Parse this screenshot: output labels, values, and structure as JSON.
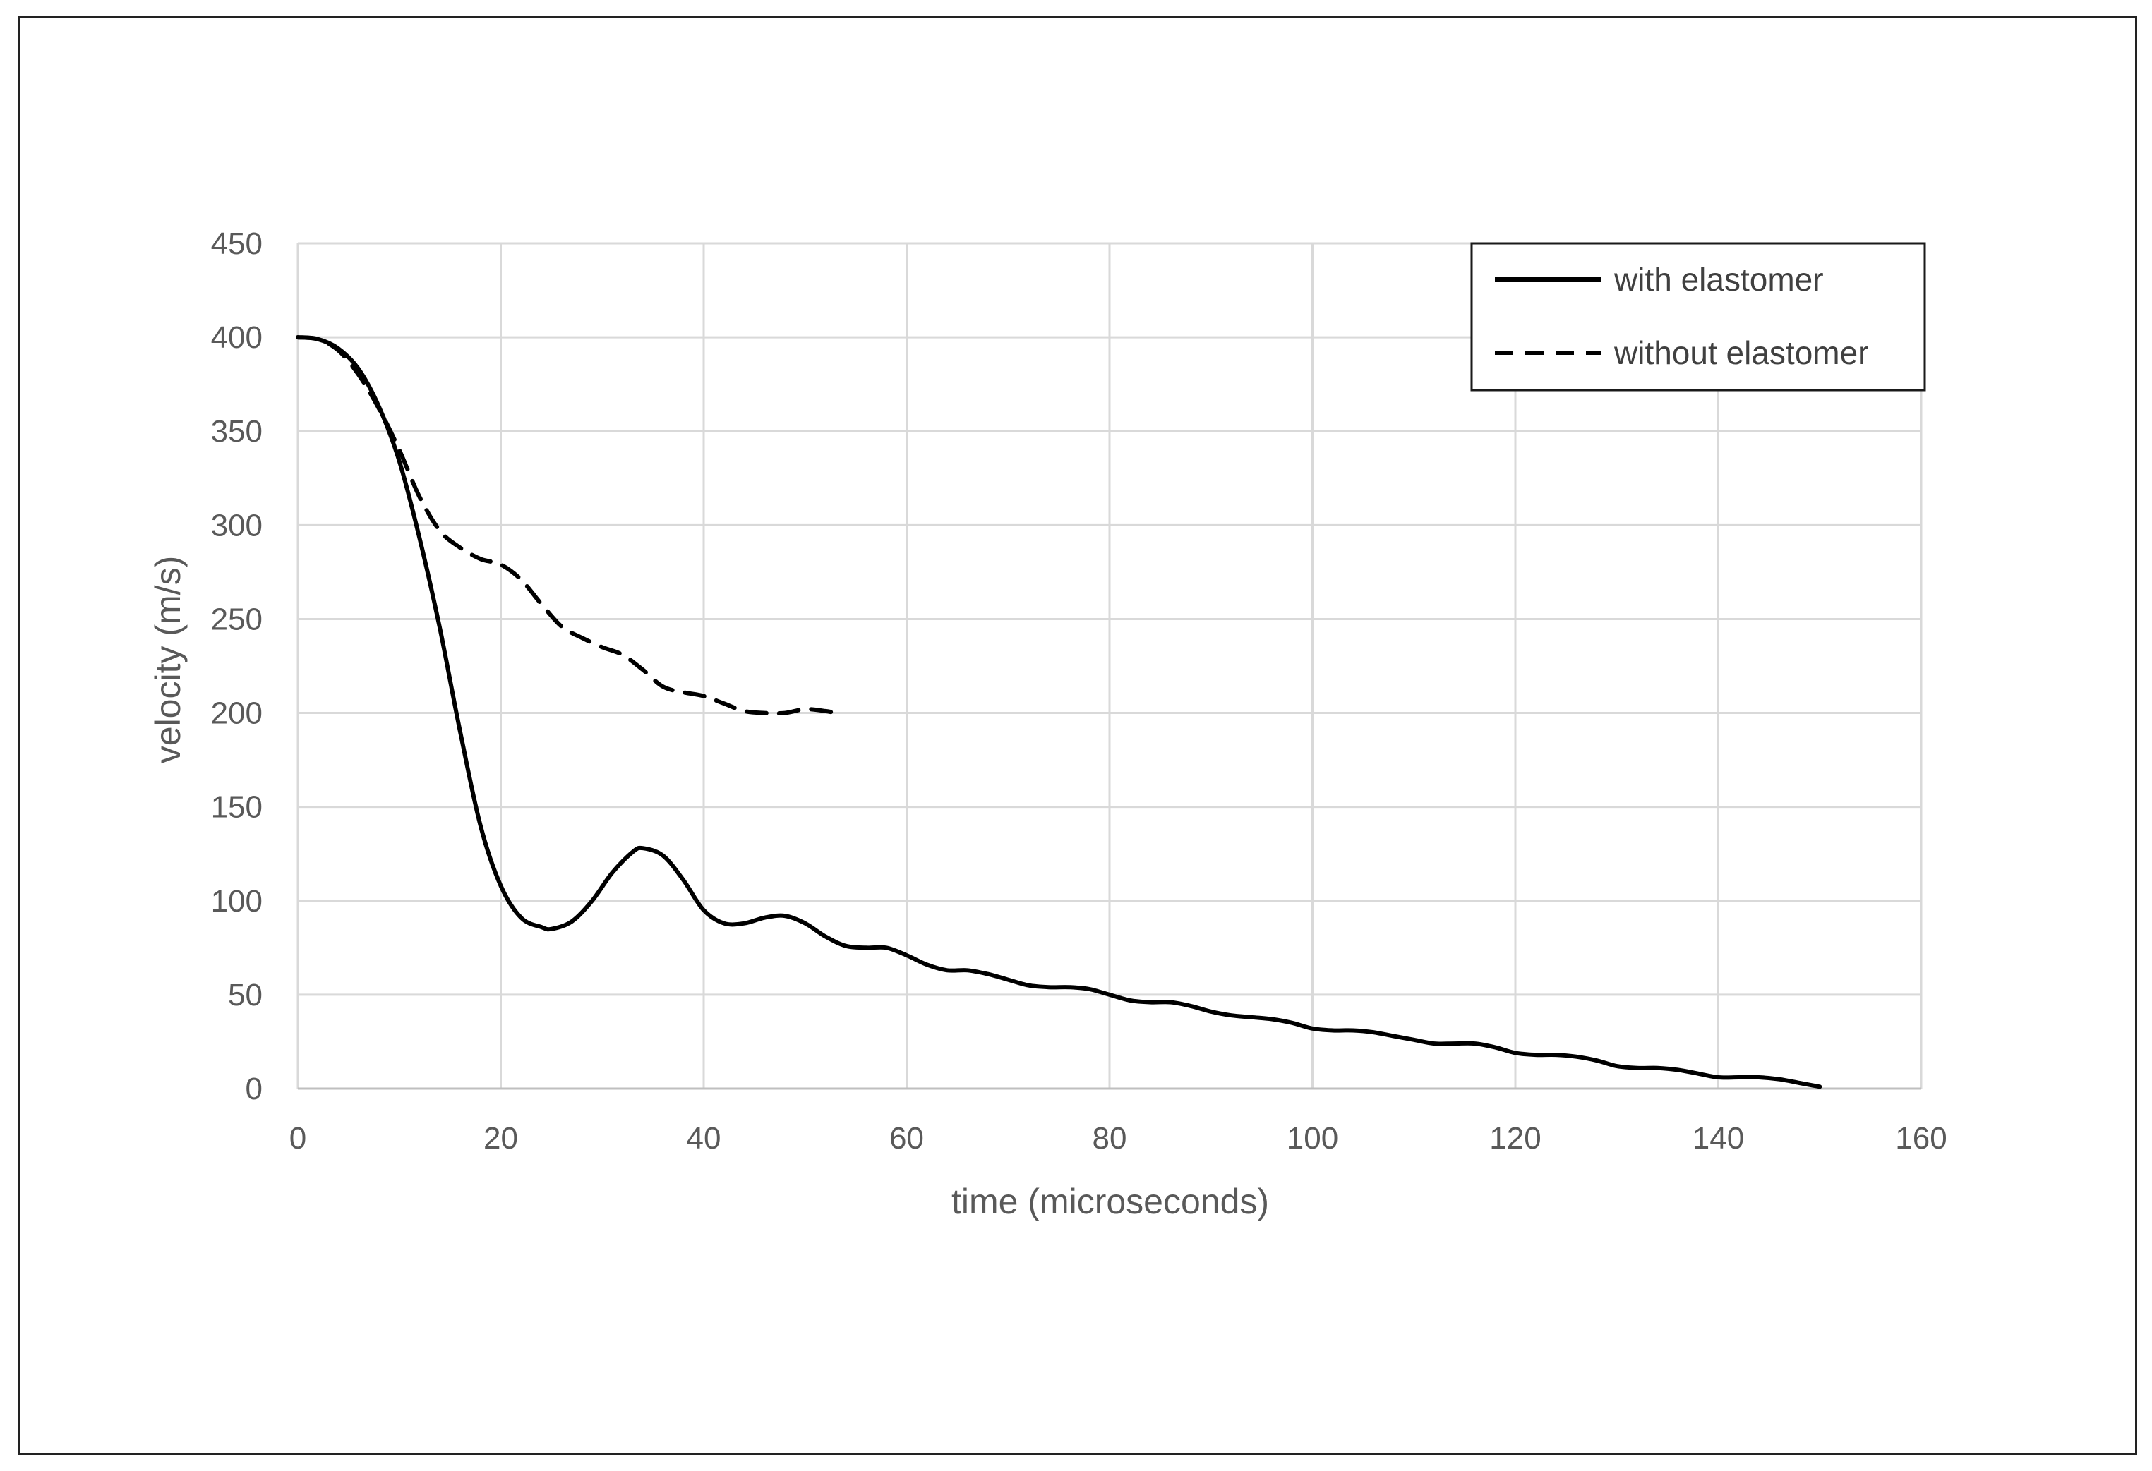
{
  "chart_data": {
    "type": "line",
    "xlabel": "time (microseconds)",
    "ylabel": "velocity (m/s)",
    "xlim": [
      0,
      160
    ],
    "ylim": [
      0,
      450
    ],
    "x_ticks": [
      "0",
      "20",
      "40",
      "60",
      "80",
      "100",
      "120",
      "140",
      "160"
    ],
    "y_ticks": [
      "0",
      "50",
      "100",
      "150",
      "200",
      "250",
      "300",
      "350",
      "400",
      "450"
    ],
    "grid": true,
    "legend_position": "top-right",
    "series": [
      {
        "name": "with elastomer",
        "style": "solid",
        "color": "#000000",
        "points": [
          [
            0,
            400
          ],
          [
            2,
            399
          ],
          [
            4,
            394
          ],
          [
            6,
            383
          ],
          [
            8,
            363
          ],
          [
            10,
            334
          ],
          [
            12,
            293
          ],
          [
            14,
            245
          ],
          [
            16,
            190
          ],
          [
            18,
            140
          ],
          [
            20,
            108
          ],
          [
            22,
            91
          ],
          [
            24,
            86
          ],
          [
            25,
            85
          ],
          [
            27,
            89
          ],
          [
            29,
            100
          ],
          [
            31,
            115
          ],
          [
            33,
            126
          ],
          [
            34,
            128
          ],
          [
            36,
            124
          ],
          [
            38,
            111
          ],
          [
            40,
            95
          ],
          [
            42,
            88
          ],
          [
            44,
            88
          ],
          [
            46,
            91
          ],
          [
            48,
            92
          ],
          [
            50,
            88
          ],
          [
            52,
            81
          ],
          [
            54,
            76
          ],
          [
            56,
            75
          ],
          [
            58,
            75
          ],
          [
            60,
            71
          ],
          [
            62,
            66
          ],
          [
            64,
            63
          ],
          [
            66,
            63
          ],
          [
            68,
            61
          ],
          [
            70,
            58
          ],
          [
            72,
            55
          ],
          [
            74,
            54
          ],
          [
            76,
            54
          ],
          [
            78,
            53
          ],
          [
            80,
            50
          ],
          [
            82,
            47
          ],
          [
            84,
            46
          ],
          [
            86,
            46
          ],
          [
            88,
            44
          ],
          [
            90,
            41
          ],
          [
            92,
            39
          ],
          [
            94,
            38
          ],
          [
            96,
            37
          ],
          [
            98,
            35
          ],
          [
            100,
            32
          ],
          [
            102,
            31
          ],
          [
            104,
            31
          ],
          [
            106,
            30
          ],
          [
            108,
            28
          ],
          [
            110,
            26
          ],
          [
            112,
            24
          ],
          [
            114,
            24
          ],
          [
            116,
            24
          ],
          [
            118,
            22
          ],
          [
            120,
            19
          ],
          [
            122,
            18
          ],
          [
            124,
            18
          ],
          [
            126,
            17
          ],
          [
            128,
            15
          ],
          [
            130,
            12
          ],
          [
            132,
            11
          ],
          [
            134,
            11
          ],
          [
            136,
            10
          ],
          [
            138,
            8
          ],
          [
            140,
            6
          ],
          [
            142,
            6
          ],
          [
            144,
            6
          ],
          [
            146,
            5
          ],
          [
            148,
            3
          ],
          [
            150,
            1
          ]
        ]
      },
      {
        "name": "without elastomer",
        "style": "dashed",
        "color": "#000000",
        "points": [
          [
            0,
            400
          ],
          [
            2,
            399
          ],
          [
            4,
            393
          ],
          [
            6,
            380
          ],
          [
            8,
            362
          ],
          [
            10,
            340
          ],
          [
            12,
            315
          ],
          [
            14,
            297
          ],
          [
            16,
            288
          ],
          [
            18,
            282
          ],
          [
            20,
            279
          ],
          [
            22,
            271
          ],
          [
            24,
            258
          ],
          [
            26,
            246
          ],
          [
            28,
            240
          ],
          [
            30,
            235
          ],
          [
            32,
            231
          ],
          [
            34,
            223
          ],
          [
            36,
            214
          ],
          [
            38,
            211
          ],
          [
            40,
            209
          ],
          [
            42,
            205
          ],
          [
            44,
            201
          ],
          [
            46,
            200
          ],
          [
            48,
            200
          ],
          [
            50,
            202
          ],
          [
            52,
            201
          ],
          [
            53,
            200
          ]
        ]
      }
    ]
  }
}
